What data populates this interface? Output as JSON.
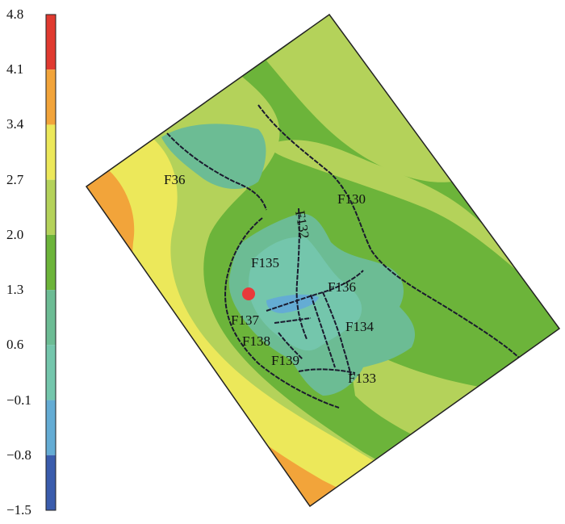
{
  "colorbar": {
    "ticks": [
      "4.8",
      "4.1",
      "3.4",
      "2.7",
      "2.0",
      "1.3",
      "0.6",
      "−0.1",
      "−0.8",
      "−1.5"
    ],
    "band_colors": [
      "#e03a30",
      "#f2a43a",
      "#ece85a",
      "#b4d25a",
      "#6cb43a",
      "#6cbc94",
      "#74c6ac",
      "#64acd4",
      "#3a5cac"
    ]
  },
  "faults": [
    "F36",
    "F130",
    "F132",
    "F135",
    "F136",
    "F137",
    "F134",
    "F138",
    "F139",
    "F133"
  ],
  "well_marker_color": "#e83a3a"
}
